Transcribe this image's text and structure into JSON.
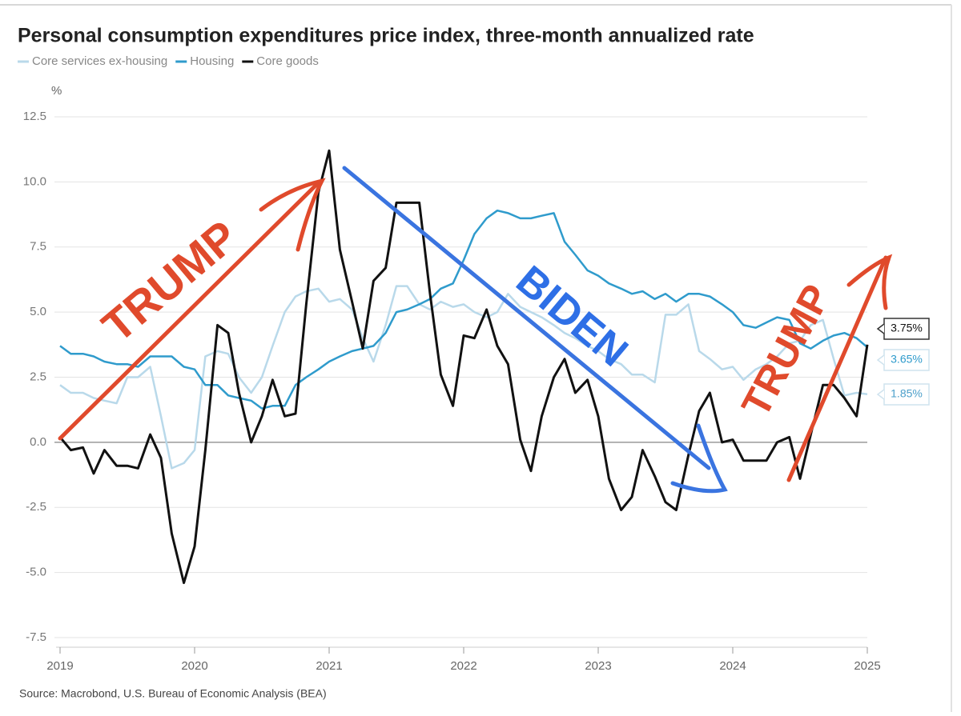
{
  "chart_data": {
    "type": "line",
    "title": "Personal consumption expenditures price index, three-month annualized rate",
    "y_label": "%",
    "source": "Source: Macrobond, U.S. Bureau of Economic Analysis (BEA)",
    "xlim": [
      2019,
      2025
    ],
    "xticks": [
      2019,
      2020,
      2021,
      2022,
      2023,
      2024,
      2025
    ],
    "ylim": [
      -7.5,
      12.5
    ],
    "yticks": [
      -7.5,
      {
        "value": -5,
        "label": "-5.0"
      },
      -2.5,
      {
        "value": 0,
        "label": "0.0"
      },
      2.5,
      {
        "value": 5,
        "label": "5.0"
      },
      7.5,
      {
        "value": 10,
        "label": "10.0"
      },
      12.5
    ],
    "grid": true,
    "x": [
      2019,
      2019.08,
      2019.17,
      2019.25,
      2019.33,
      2019.42,
      2019.5,
      2019.58,
      2019.67,
      2019.75,
      2019.83,
      2019.92,
      2020,
      2020.08,
      2020.17,
      2020.25,
      2020.33,
      2020.42,
      2020.5,
      2020.58,
      2020.67,
      2020.75,
      2020.83,
      2020.92,
      2021,
      2021.08,
      2021.17,
      2021.25,
      2021.33,
      2021.42,
      2021.5,
      2021.58,
      2021.67,
      2021.75,
      2021.83,
      2021.92,
      2022,
      2022.08,
      2022.17,
      2022.25,
      2022.33,
      2022.42,
      2022.5,
      2022.58,
      2022.67,
      2022.75,
      2022.83,
      2022.92,
      2023,
      2023.08,
      2023.17,
      2023.25,
      2023.33,
      2023.42,
      2023.5,
      2023.58,
      2023.67,
      2023.75,
      2023.83,
      2023.92,
      2024,
      2024.08,
      2024.17,
      2024.25,
      2024.33,
      2024.42,
      2024.5,
      2024.58,
      2024.67,
      2024.75,
      2024.83,
      2024.92,
      2025
    ],
    "series": [
      {
        "name": "Core services ex-housing",
        "color": "#b9d9ea",
        "end_label": "1.85%",
        "values": [
          2.2,
          1.9,
          1.9,
          1.7,
          1.6,
          1.5,
          2.5,
          2.5,
          2.9,
          1.0,
          -1.0,
          -0.8,
          -0.3,
          3.3,
          3.5,
          3.4,
          2.5,
          1.9,
          2.5,
          3.7,
          5.0,
          5.6,
          5.8,
          5.9,
          5.4,
          5.5,
          5.1,
          4.0,
          3.1,
          4.5,
          6.0,
          6.0,
          5.3,
          5.1,
          5.4,
          5.2,
          5.3,
          5.0,
          4.8,
          5.0,
          5.7,
          5.2,
          5.0,
          4.8,
          4.5,
          4.2,
          4.0,
          3.7,
          3.5,
          3.2,
          3.0,
          2.6,
          2.6,
          2.3,
          4.9,
          4.9,
          5.3,
          3.5,
          3.2,
          2.8,
          2.9,
          2.4,
          2.8,
          3.0,
          3.3,
          3.8,
          3.9,
          4.5,
          4.7,
          3.2,
          1.8,
          1.9,
          1.85
        ]
      },
      {
        "name": "Housing",
        "color": "#2f9bcc",
        "end_label": "3.65%",
        "values": [
          3.7,
          3.4,
          3.4,
          3.3,
          3.1,
          3.0,
          3.0,
          2.9,
          3.3,
          3.3,
          3.3,
          2.9,
          2.8,
          2.2,
          2.2,
          1.8,
          1.7,
          1.6,
          1.3,
          1.4,
          1.4,
          2.2,
          2.5,
          2.8,
          3.1,
          3.3,
          3.5,
          3.6,
          3.7,
          4.2,
          5.0,
          5.1,
          5.3,
          5.5,
          5.9,
          6.1,
          7.0,
          8.0,
          8.6,
          8.9,
          8.8,
          8.6,
          8.6,
          8.7,
          8.8,
          7.7,
          7.2,
          6.6,
          6.4,
          6.1,
          5.9,
          5.7,
          5.8,
          5.5,
          5.7,
          5.4,
          5.7,
          5.7,
          5.6,
          5.3,
          5.0,
          4.5,
          4.4,
          4.6,
          4.8,
          4.7,
          3.8,
          3.6,
          3.9,
          4.1,
          4.2,
          4.0,
          3.65
        ]
      },
      {
        "name": "Core goods",
        "color": "#111111",
        "end_label": "3.75%",
        "values": [
          0.2,
          -0.3,
          -0.2,
          -1.2,
          -0.3,
          -0.9,
          -0.9,
          -1.0,
          0.3,
          -0.6,
          -3.5,
          -5.4,
          -4.0,
          -0.3,
          4.5,
          4.2,
          1.9,
          0.0,
          1.0,
          2.4,
          1.0,
          1.1,
          5.3,
          9.6,
          11.2,
          7.4,
          5.4,
          3.6,
          6.2,
          6.7,
          9.2,
          9.2,
          9.2,
          5.7,
          2.6,
          1.4,
          4.1,
          4.0,
          5.1,
          3.7,
          3.0,
          0.1,
          -1.1,
          1.0,
          2.5,
          3.2,
          1.9,
          2.4,
          1.0,
          -1.4,
          -2.6,
          -2.1,
          -0.3,
          -1.3,
          -2.3,
          -2.6,
          -0.5,
          1.2,
          1.9,
          0.0,
          0.1,
          -0.7,
          -0.7,
          -0.7,
          0.0,
          0.2,
          -1.4,
          0.3,
          2.2,
          2.2,
          1.7,
          1.0,
          3.75
        ]
      }
    ],
    "annotations": [
      {
        "text": "TRUMP",
        "color": "#e04a2c"
      },
      {
        "text": "BIDEN",
        "color": "#2e6fe6"
      },
      {
        "text": "TRUMP",
        "color": "#e04a2c"
      }
    ]
  }
}
